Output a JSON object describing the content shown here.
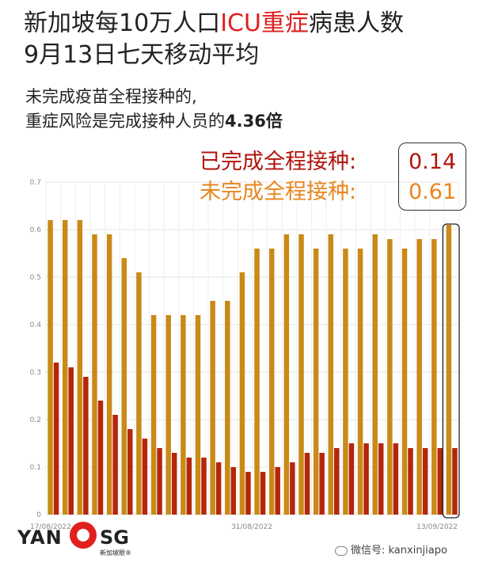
{
  "header": {
    "title_line1_a": "新加坡每10万人口",
    "title_line1_red": "ICU重症",
    "title_line1_b": "病患人数",
    "title_line2": "9月13日七天移动平均",
    "subtitle_line1": "未完成疫苗全程接种的,",
    "subtitle_line2_a": "重症风险是完成接种人员的",
    "subtitle_line2_bold": "4.36倍"
  },
  "legend": {
    "vaccinated_label": "已完成全程接种:",
    "vaccinated_value": "0.14",
    "unvaccinated_label": "未完成全程接种:",
    "unvaccinated_value": "0.61"
  },
  "chart_data": {
    "type": "bar",
    "title": "",
    "xlabel": "",
    "ylabel": "",
    "ylim": [
      0,
      0.7
    ],
    "yticks": [
      "0",
      "0.1",
      "0.2",
      "0.3",
      "0.4",
      "0.5",
      "0.6",
      "0.7"
    ],
    "xtick_labels": [
      "17/08/2022",
      "31/08/2022",
      "13/09/2022"
    ],
    "grid": true,
    "colors": {
      "vaccinated": "#b5260b",
      "unvaccinated": "#c98a17"
    },
    "series": [
      {
        "name": "未完成全程接种",
        "values": [
          0.62,
          0.62,
          0.62,
          0.59,
          0.59,
          0.54,
          0.51,
          0.42,
          0.42,
          0.42,
          0.42,
          0.45,
          0.45,
          0.51,
          0.56,
          0.56,
          0.59,
          0.59,
          0.56,
          0.59,
          0.56,
          0.56,
          0.59,
          0.58,
          0.56,
          0.58,
          0.58,
          0.61
        ]
      },
      {
        "name": "已完成全程接种",
        "values": [
          0.32,
          0.31,
          0.29,
          0.24,
          0.21,
          0.18,
          0.16,
          0.14,
          0.13,
          0.12,
          0.12,
          0.11,
          0.1,
          0.09,
          0.09,
          0.1,
          0.11,
          0.13,
          0.13,
          0.14,
          0.15,
          0.15,
          0.15,
          0.15,
          0.14,
          0.14,
          0.14,
          0.14
        ]
      }
    ]
  },
  "footer": {
    "logo_left": "YAN",
    "logo_right": "SG",
    "logo_cn": "新加坡眼®",
    "wechat": "微信号: kanxinjiapo"
  }
}
